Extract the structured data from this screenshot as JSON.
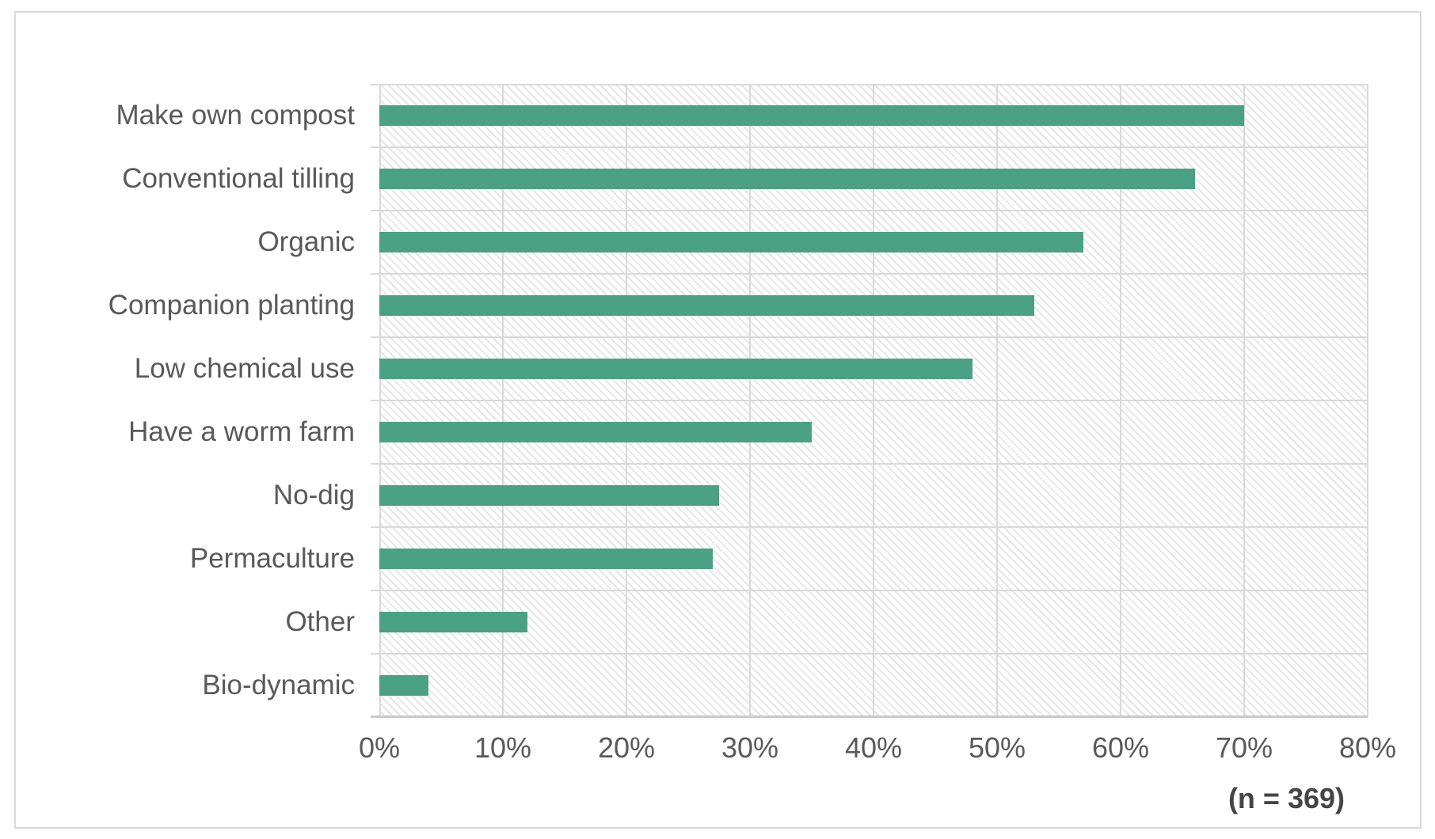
{
  "chart_data": {
    "type": "bar",
    "orientation": "horizontal",
    "title": "",
    "xlabel": "",
    "ylabel": "",
    "categories": [
      "Make own compost",
      "Conventional tilling",
      "Organic",
      "Companion planting",
      "Low chemical use",
      "Have a worm farm",
      "No-dig",
      "Permaculture",
      "Other",
      "Bio-dynamic"
    ],
    "values": [
      70,
      66,
      57,
      53,
      48,
      35,
      27.5,
      27,
      12,
      4
    ],
    "unit": "%",
    "xlim": [
      0,
      80
    ],
    "x_tick_step": 10,
    "x_tick_labels": [
      "0%",
      "10%",
      "20%",
      "30%",
      "40%",
      "50%",
      "60%",
      "70%",
      "80%"
    ],
    "grid": "both",
    "plot_background": "diagonal-hatch",
    "legend": "none",
    "annotation": "(n = 369)"
  },
  "style": {
    "bar_color": "#4aa183",
    "gridline_color": "#d9d9d9",
    "axis_line_color": "#c9c9c9",
    "label_color": "#595959",
    "annotation_color": "#454545",
    "frame_border_color": "#d9d9d9"
  }
}
